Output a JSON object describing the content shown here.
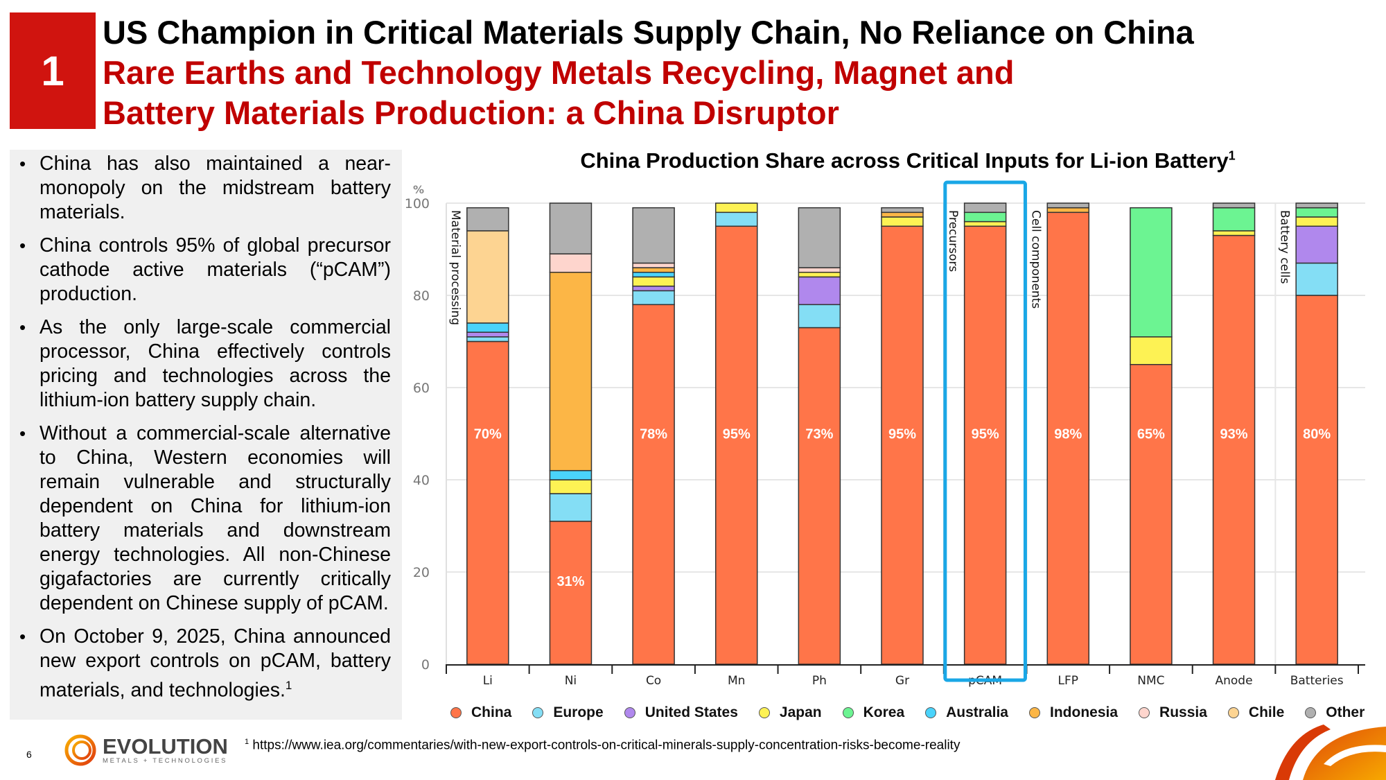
{
  "slide": {
    "section_number": "1",
    "title_line1": "US Champion in Critical Materials Supply Chain, No Reliance on China",
    "title_line2": "Rare Earths and Technology Metals Recycling, Magnet and",
    "title_line3": "Battery Materials Production: a China Disruptor",
    "page_number": "6"
  },
  "bullets": [
    {
      "text": "China has also maintained a near-monopoly on the midstream battery materials."
    },
    {
      "text": "China controls 95% of global precursor cathode active materials (“pCAM”) production."
    },
    {
      "text": "As the only large-scale commercial processor, China effectively controls pricing and technologies across the lithium-ion battery supply chain."
    },
    {
      "text": "Without a commercial-scale alternative to China, Western economies will remain vulnerable and structurally dependent on China for lithium-ion battery materials and downstream energy technologies. All non-Chinese gigafactories are currently critically dependent on Chinese supply of pCAM."
    },
    {
      "text": "On October 9, 2025, China announced new export controls on pCAM, battery materials, and technologies.",
      "sup": "1"
    }
  ],
  "footnote": {
    "marker": "1",
    "text": "https://www.iea.org/commentaries/with-new-export-controls-on-critical-minerals-supply-concentration-risks-become-reality"
  },
  "logo": {
    "name": "EVOLUTION",
    "tagline": "METALS + TECHNOLOGIES"
  },
  "chart_data": {
    "type": "bar",
    "stacked": true,
    "title": "China Production Share across Critical Inputs for Li-ion Battery",
    "title_sup": "1",
    "ylabel": "%",
    "ylim": [
      0,
      100
    ],
    "yticks": [
      0,
      20,
      40,
      60,
      80,
      100
    ],
    "grid": true,
    "legend_position": "bottom",
    "categories": [
      "Li",
      "Ni",
      "Co",
      "Mn",
      "Ph",
      "Gr",
      "pCAM",
      "LFP",
      "NMC",
      "Anode",
      "Batteries"
    ],
    "highlight_category": "pCAM",
    "highlight_color": "#1aa7e6",
    "stage_labels": [
      {
        "label": "Material processing",
        "before_category": "Li"
      },
      {
        "label": "Precursors",
        "before_category": "pCAM"
      },
      {
        "label": "Cell components",
        "before_category": "LFP"
      },
      {
        "label": "Battery cells",
        "before_category": "Batteries"
      }
    ],
    "data_labels": [
      "70%",
      "31%",
      "78%",
      "95%",
      "73%",
      "95%",
      "95%",
      "98%",
      "65%",
      "93%",
      "80%"
    ],
    "series": [
      {
        "name": "China",
        "color": "#ff7549",
        "values": [
          70,
          31,
          78,
          95,
          73,
          95,
          95,
          98,
          65,
          93,
          80
        ]
      },
      {
        "name": "Europe",
        "color": "#84def5",
        "values": [
          1,
          6,
          3,
          3,
          5,
          0,
          0,
          0,
          0,
          0,
          7
        ]
      },
      {
        "name": "United States",
        "color": "#b088ed",
        "values": [
          1,
          0,
          1,
          0,
          6,
          0,
          0,
          0,
          0,
          0,
          8
        ]
      },
      {
        "name": "Japan",
        "color": "#fdf254",
        "values": [
          0,
          3,
          2,
          2,
          1,
          2,
          1,
          0,
          6,
          1,
          2
        ]
      },
      {
        "name": "Korea",
        "color": "#6cf492",
        "values": [
          0,
          0,
          0,
          0,
          0,
          0,
          2,
          0,
          28,
          5,
          2
        ]
      },
      {
        "name": "Australia",
        "color": "#4ad3fb",
        "values": [
          2,
          2,
          1,
          0,
          0,
          0,
          0,
          0,
          0,
          0,
          0
        ]
      },
      {
        "name": "Indonesia",
        "color": "#fcb646",
        "values": [
          0,
          43,
          1,
          0,
          0,
          1,
          0,
          1,
          0,
          0,
          0
        ]
      },
      {
        "name": "Russia",
        "color": "#fed5cd",
        "values": [
          0,
          4,
          1,
          0,
          1,
          0,
          0,
          0,
          0,
          0,
          0
        ]
      },
      {
        "name": "Chile",
        "color": "#fdd492",
        "values": [
          20,
          0,
          0,
          0,
          0,
          0,
          0,
          0,
          0,
          0,
          0
        ]
      },
      {
        "name": "Other",
        "color": "#b0b0b0",
        "values": [
          5,
          11,
          12,
          0,
          13,
          1,
          2,
          1,
          0,
          1,
          1
        ]
      }
    ]
  }
}
